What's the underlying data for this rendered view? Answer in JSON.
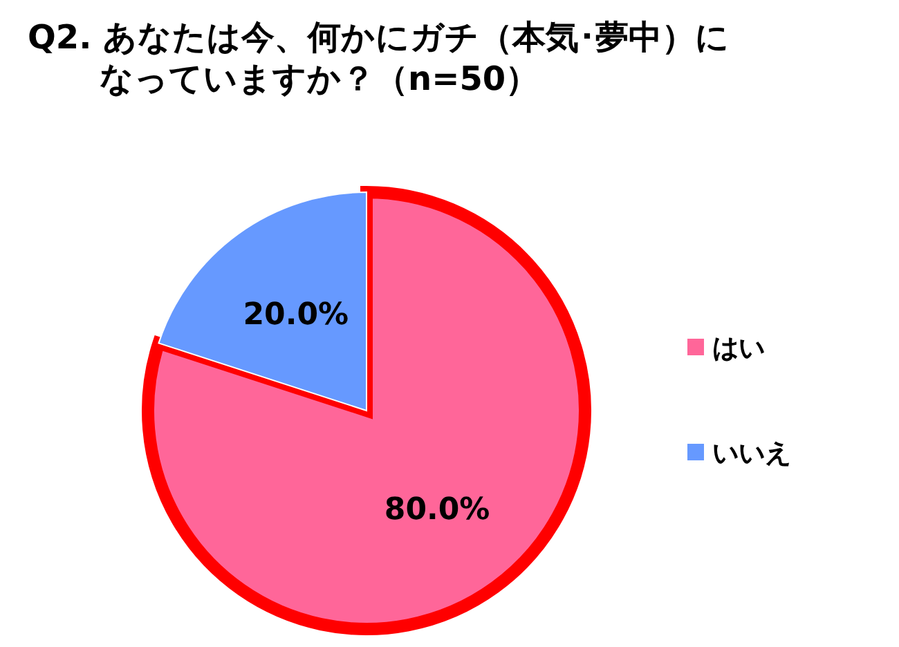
{
  "chart_data": {
    "type": "pie",
    "title": "Q2. あなたは今、何かにガチ（本気･夢中）になっていますか？（n=50）",
    "categories": [
      "はい",
      "いいえ"
    ],
    "values": [
      80,
      20
    ],
    "colors": [
      "#ff6699",
      "#6699ff"
    ],
    "value_labels": [
      "80.0%",
      "20.0%"
    ],
    "legend": "right"
  }
}
